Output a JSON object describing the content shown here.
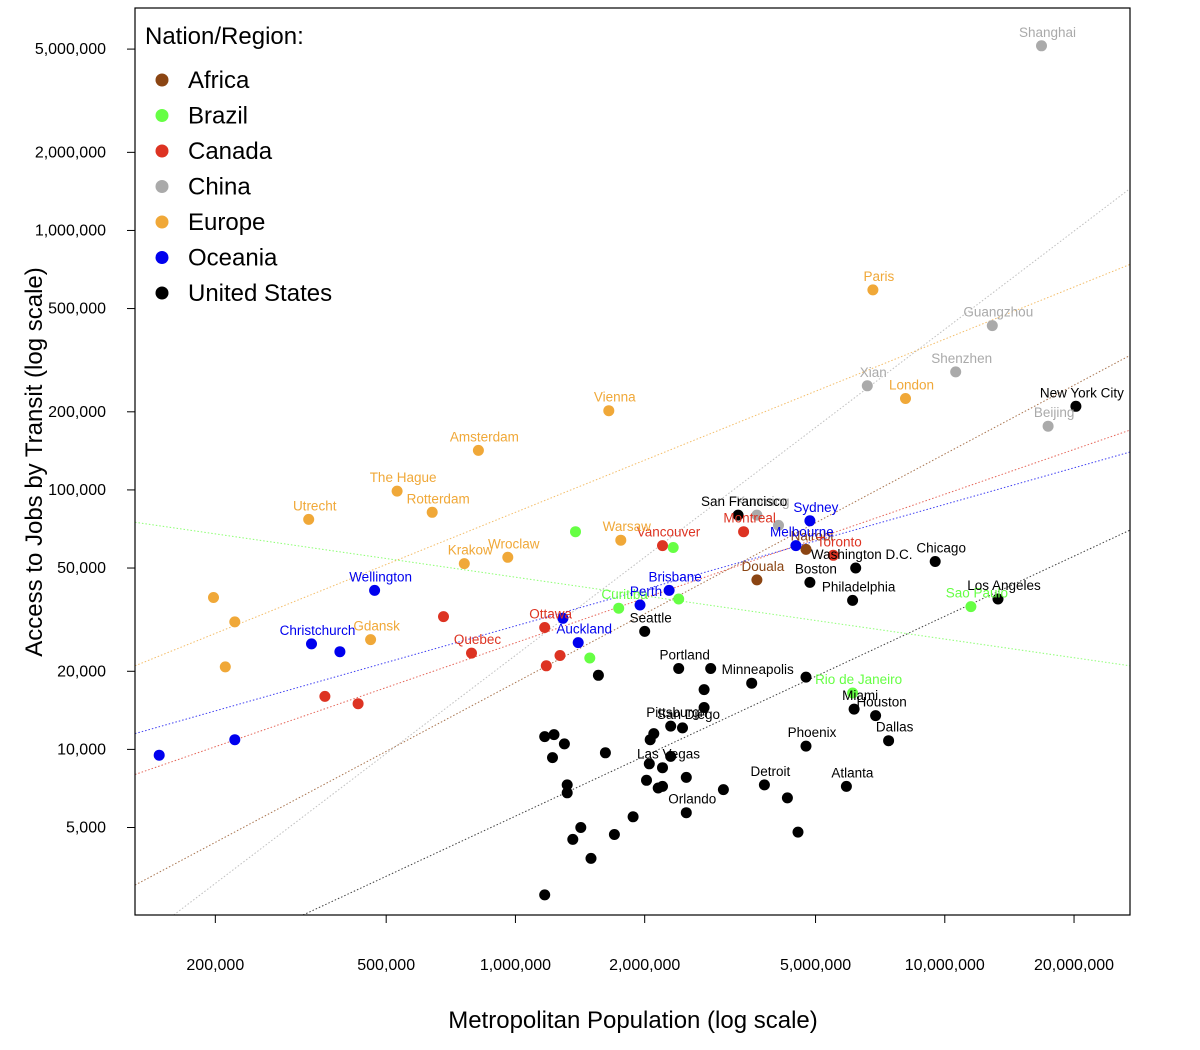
{
  "chart_data": {
    "type": "scatter",
    "xlabel": "Metropolitan Population (log scale)",
    "ylabel": "Access to Jobs by Transit (log scale)",
    "x_scale": "log",
    "y_scale": "log",
    "xlim": [
      130000,
      27000000
    ],
    "ylim": [
      2300,
      7200000
    ],
    "grid": false,
    "legend_placement": "top-left",
    "legend_title": "Nation/Region:",
    "x_ticks": [
      {
        "value": 200000,
        "label": "200,000"
      },
      {
        "value": 500000,
        "label": "500,000"
      },
      {
        "value": 1000000,
        "label": "1,000,000"
      },
      {
        "value": 2000000,
        "label": "2,000,000"
      },
      {
        "value": 5000000,
        "label": "5,000,000"
      },
      {
        "value": 10000000,
        "label": "10,000,000"
      },
      {
        "value": 20000000,
        "label": "20,000,000"
      }
    ],
    "y_ticks": [
      {
        "value": 5000,
        "label": "5,000"
      },
      {
        "value": 10000,
        "label": "10,000"
      },
      {
        "value": 20000,
        "label": "20,000"
      },
      {
        "value": 50000,
        "label": "50,000"
      },
      {
        "value": 100000,
        "label": "100,000"
      },
      {
        "value": 200000,
        "label": "200,000"
      },
      {
        "value": 500000,
        "label": "500,000"
      },
      {
        "value": 1000000,
        "label": "1,000,000"
      },
      {
        "value": 2000000,
        "label": "2,000,000"
      },
      {
        "value": 5000000,
        "label": "5,000,000"
      }
    ],
    "series": [
      {
        "name": "Africa",
        "color": "#8B4513",
        "fit": [
          [
            130000,
            3000
          ],
          [
            27000000,
            330000
          ]
        ],
        "points": [
          {
            "x": 3650000,
            "y": 45000,
            "label": "Douala",
            "lc": "#8B4513"
          },
          {
            "x": 4750000,
            "y": 59000,
            "label": "Nairobi",
            "lc": "#8B4513"
          }
        ]
      },
      {
        "name": "Brazil",
        "color": "#66ff44",
        "fit": [
          [
            130000,
            75000
          ],
          [
            27000000,
            21000
          ]
        ],
        "points": [
          {
            "x": 1380000,
            "y": 69000
          },
          {
            "x": 2330000,
            "y": 60000
          },
          {
            "x": 2400000,
            "y": 38000
          },
          {
            "x": 1740000,
            "y": 35000,
            "label": "Curitiba",
            "lc": "#66ff44"
          },
          {
            "x": 1490000,
            "y": 22500
          },
          {
            "x": 11500000,
            "y": 35500,
            "label": "Sao Paulo",
            "lc": "#66ff44"
          },
          {
            "x": 6100000,
            "y": 16500,
            "label": "Rio de Janeiro",
            "lc": "#66ff44"
          }
        ]
      },
      {
        "name": "Canada",
        "color": "#dd3322",
        "fit": [
          [
            130000,
            8000
          ],
          [
            27000000,
            170000
          ]
        ],
        "points": [
          {
            "x": 680000,
            "y": 32500
          },
          {
            "x": 1170000,
            "y": 29500,
            "label": "Ottawa",
            "lc": "#dd3322"
          },
          {
            "x": 790000,
            "y": 23500,
            "label": "Quebec",
            "lc": "#dd3322"
          },
          {
            "x": 1180000,
            "y": 21000
          },
          {
            "x": 1270000,
            "y": 23000
          },
          {
            "x": 360000,
            "y": 16000
          },
          {
            "x": 430000,
            "y": 15000
          },
          {
            "x": 2200000,
            "y": 61000,
            "label": "Vancouver",
            "lc": "#dd3322"
          },
          {
            "x": 3400000,
            "y": 69000,
            "label": "Montreal",
            "lc": "#dd3322"
          },
          {
            "x": 5500000,
            "y": 56000,
            "label": "Toronto",
            "lc": "#dd3322"
          }
        ]
      },
      {
        "name": "China",
        "color": "#aaaaaa",
        "fit": [
          [
            160000,
            2300
          ],
          [
            27000000,
            1450000
          ]
        ],
        "points": [
          {
            "x": 16800000,
            "y": 5150000,
            "label": "Shanghai",
            "lc": "#aaaaaa"
          },
          {
            "x": 12900000,
            "y": 430000,
            "label": "Guangzhou",
            "lc": "#aaaaaa"
          },
          {
            "x": 10600000,
            "y": 285000,
            "label": "Shenzhen",
            "lc": "#aaaaaa"
          },
          {
            "x": 6600000,
            "y": 252000,
            "label": "Xian",
            "lc": "#aaaaaa"
          },
          {
            "x": 17400000,
            "y": 176000,
            "label": "Beijing",
            "lc": "#aaaaaa"
          },
          {
            "x": 3650000,
            "y": 80000,
            "label": "Kunming",
            "lc": "#aaaaaa"
          },
          {
            "x": 4100000,
            "y": 73000
          }
        ]
      },
      {
        "name": "Europe",
        "color": "#f0a838",
        "fit": [
          [
            130000,
            21000
          ],
          [
            27000000,
            740000
          ]
        ],
        "points": [
          {
            "x": 6800000,
            "y": 590000,
            "label": "Paris",
            "lc": "#f0a838"
          },
          {
            "x": 8100000,
            "y": 225000,
            "label": "London",
            "lc": "#f0a838"
          },
          {
            "x": 1650000,
            "y": 202000,
            "label": "Vienna",
            "lc": "#f0a838"
          },
          {
            "x": 820000,
            "y": 142000,
            "label": "Amsterdam",
            "lc": "#f0a838"
          },
          {
            "x": 530000,
            "y": 99000,
            "label": "The Hague",
            "lc": "#f0a838"
          },
          {
            "x": 640000,
            "y": 82000,
            "label": "Rotterdam",
            "lc": "#f0a838"
          },
          {
            "x": 330000,
            "y": 77000,
            "label": "Utrecht",
            "lc": "#f0a838"
          },
          {
            "x": 1760000,
            "y": 64000,
            "label": "Warsaw",
            "lc": "#f0a838"
          },
          {
            "x": 960000,
            "y": 55000,
            "label": "Wroclaw",
            "lc": "#f0a838"
          },
          {
            "x": 760000,
            "y": 52000,
            "label": "Krakow",
            "lc": "#f0a838"
          },
          {
            "x": 460000,
            "y": 26500,
            "label": "Gdansk",
            "lc": "#f0a838"
          },
          {
            "x": 198000,
            "y": 38500
          },
          {
            "x": 222000,
            "y": 31000
          },
          {
            "x": 211000,
            "y": 20800
          }
        ]
      },
      {
        "name": "Oceania",
        "color": "#0000ee",
        "fit": [
          [
            130000,
            11500
          ],
          [
            27000000,
            140000
          ]
        ],
        "points": [
          {
            "x": 4850000,
            "y": 76000,
            "label": "Sydney",
            "lc": "#0000ee"
          },
          {
            "x": 4500000,
            "y": 61000,
            "label": "Melbourne",
            "lc": "#0000ee"
          },
          {
            "x": 2280000,
            "y": 41000,
            "label": "Brisbane",
            "lc": "#0000ee"
          },
          {
            "x": 1950000,
            "y": 36000,
            "label": "Perth",
            "lc": "#0000ee"
          },
          {
            "x": 1400000,
            "y": 25800,
            "label": "Auckland",
            "lc": "#0000ee"
          },
          {
            "x": 1290000,
            "y": 32000
          },
          {
            "x": 470000,
            "y": 41000,
            "label": "Wellington",
            "lc": "#0000ee"
          },
          {
            "x": 335000,
            "y": 25500,
            "label": "Christchurch",
            "lc": "#0000ee"
          },
          {
            "x": 390000,
            "y": 23800
          },
          {
            "x": 222000,
            "y": 10900
          },
          {
            "x": 148000,
            "y": 9500
          }
        ]
      },
      {
        "name": "United States",
        "color": "#000000",
        "fit": [
          [
            320000,
            2300
          ],
          [
            27000000,
            70000
          ]
        ],
        "points": [
          {
            "x": 20200000,
            "y": 210000,
            "label": "New York City",
            "lc": "#000000"
          },
          {
            "x": 3300000,
            "y": 80000,
            "label": "San Francisco",
            "lc": "#000000"
          },
          {
            "x": 9500000,
            "y": 53000,
            "label": "Chicago",
            "lc": "#000000"
          },
          {
            "x": 6200000,
            "y": 50000,
            "label": "Washington D.C.",
            "lc": "#000000"
          },
          {
            "x": 4850000,
            "y": 44000,
            "label": "Boston",
            "lc": "#000000"
          },
          {
            "x": 6100000,
            "y": 37500,
            "label": "Philadelphia",
            "lc": "#000000"
          },
          {
            "x": 13300000,
            "y": 38000,
            "label": "Los Angeles",
            "lc": "#000000"
          },
          {
            "x": 2000000,
            "y": 28500,
            "label": "Seattle",
            "lc": "#000000"
          },
          {
            "x": 2400000,
            "y": 20500,
            "label": "Portland",
            "lc": "#000000"
          },
          {
            "x": 2850000,
            "y": 20500
          },
          {
            "x": 3550000,
            "y": 18000,
            "label": "Minneapolis",
            "lc": "#000000"
          },
          {
            "x": 2750000,
            "y": 17000
          },
          {
            "x": 4750000,
            "y": 19000
          },
          {
            "x": 2750000,
            "y": 14500
          },
          {
            "x": 6150000,
            "y": 14300,
            "label": "Miami",
            "lc": "#000000"
          },
          {
            "x": 6900000,
            "y": 13500,
            "label": "Houston",
            "lc": "#000000"
          },
          {
            "x": 2300000,
            "y": 12300,
            "label": "Pittsburgh",
            "lc": "#000000"
          },
          {
            "x": 2450000,
            "y": 12100,
            "label": "San Diego",
            "lc": "#000000"
          },
          {
            "x": 2100000,
            "y": 11500
          },
          {
            "x": 2060000,
            "y": 10900
          },
          {
            "x": 7400000,
            "y": 10800,
            "label": "Dallas",
            "lc": "#000000"
          },
          {
            "x": 4750000,
            "y": 10300,
            "label": "Phoenix",
            "lc": "#000000"
          },
          {
            "x": 1560000,
            "y": 19300
          },
          {
            "x": 1170000,
            "y": 11200
          },
          {
            "x": 1230000,
            "y": 11400
          },
          {
            "x": 1300000,
            "y": 10500
          },
          {
            "x": 1220000,
            "y": 9300
          },
          {
            "x": 1620000,
            "y": 9700
          },
          {
            "x": 2300000,
            "y": 9400
          },
          {
            "x": 2050000,
            "y": 8800
          },
          {
            "x": 2200000,
            "y": 8500,
            "label": "Las Vegas",
            "lc": "#000000"
          },
          {
            "x": 2020000,
            "y": 7600
          },
          {
            "x": 2500000,
            "y": 7800
          },
          {
            "x": 2150000,
            "y": 7100
          },
          {
            "x": 2200000,
            "y": 7200
          },
          {
            "x": 3050000,
            "y": 7000
          },
          {
            "x": 1320000,
            "y": 7300
          },
          {
            "x": 1320000,
            "y": 6800
          },
          {
            "x": 3800000,
            "y": 7300,
            "label": "Detroit",
            "lc": "#000000"
          },
          {
            "x": 5900000,
            "y": 7200,
            "label": "Atlanta",
            "lc": "#000000"
          },
          {
            "x": 4300000,
            "y": 6500
          },
          {
            "x": 2500000,
            "y": 5700,
            "label": "Orlando",
            "lc": "#000000"
          },
          {
            "x": 1880000,
            "y": 5500
          },
          {
            "x": 1420000,
            "y": 5000
          },
          {
            "x": 1700000,
            "y": 4700
          },
          {
            "x": 1360000,
            "y": 4500
          },
          {
            "x": 4550000,
            "y": 4800
          },
          {
            "x": 1500000,
            "y": 3800
          },
          {
            "x": 1170000,
            "y": 2750
          }
        ]
      }
    ]
  }
}
